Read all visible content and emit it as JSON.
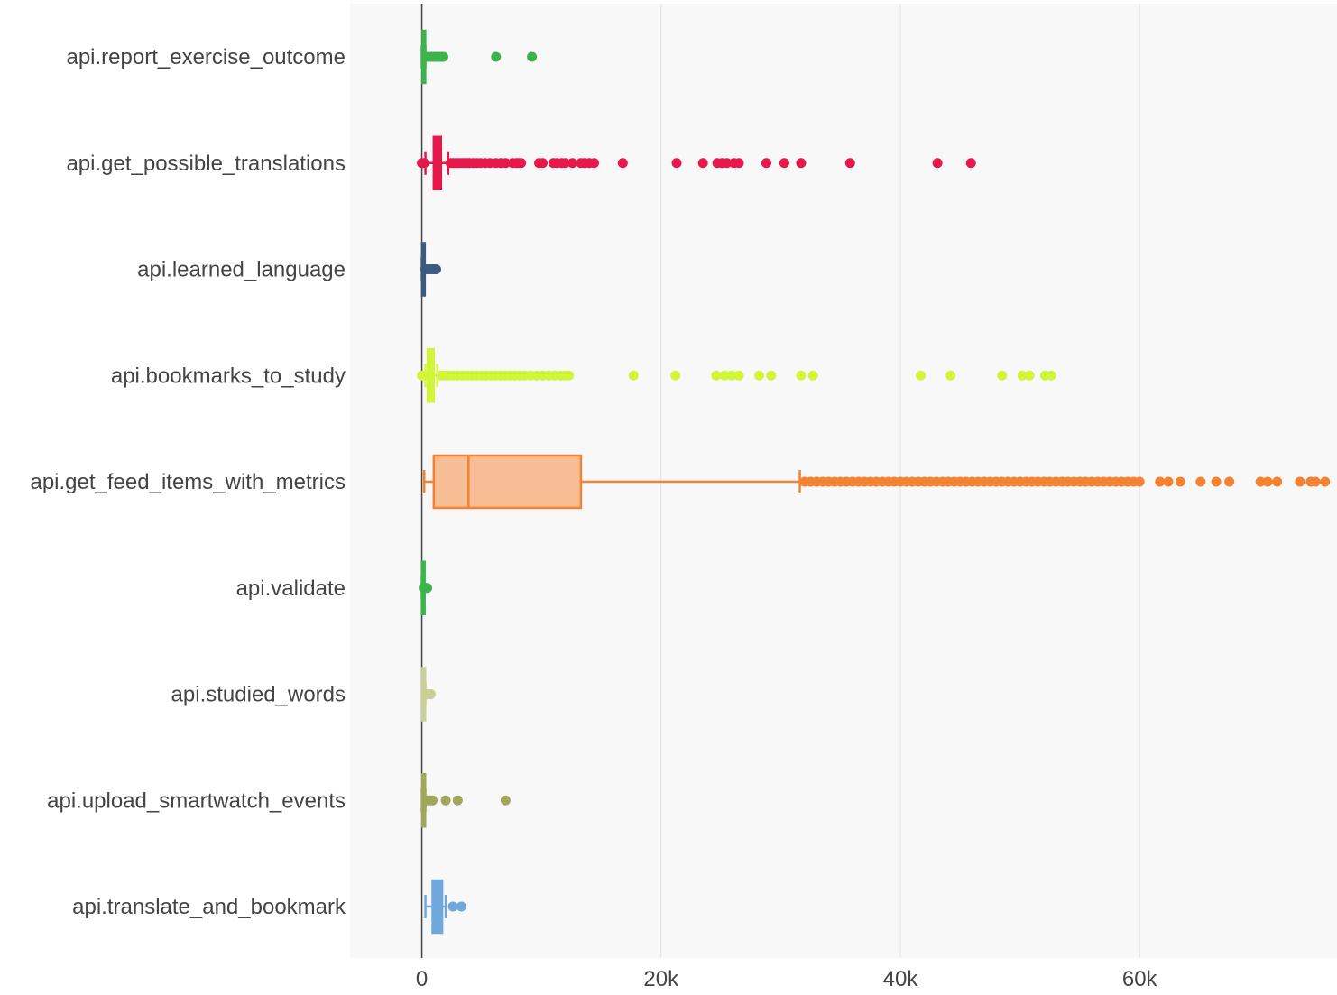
{
  "chart_data": {
    "type": "box",
    "orientation": "horizontal",
    "title": "",
    "xlabel": "",
    "ylabel": "",
    "xlim": [
      -6000,
      76500
    ],
    "x_ticks": [
      0,
      20000,
      40000,
      60000
    ],
    "x_tick_labels": [
      "0",
      "20k",
      "40k",
      "60k"
    ],
    "grid": true,
    "legend": "none",
    "plot_background": "#f8f8f8",
    "zero_line": true,
    "categories": [
      "api.report_exercise_outcome",
      "api.get_possible_translations",
      "api.learned_language",
      "api.bookmarks_to_study",
      "api.get_feed_items_with_metrics",
      "api.validate",
      "api.studied_words",
      "api.upload_smartwatch_events",
      "api.translate_and_bookmark"
    ],
    "series": [
      {
        "label": "api.report_exercise_outcome",
        "color": "#3cb44b",
        "min": 0,
        "q1": 60,
        "median": 120,
        "q3": 200,
        "max": 300,
        "outliers": [
          400,
          600,
          800,
          1000,
          1200,
          1400,
          1600,
          1800,
          6200,
          9200
        ]
      },
      {
        "label": "api.get_possible_translations",
        "color": "#e6194b",
        "min": 300,
        "q1": 1000,
        "median": 1300,
        "q3": 1600,
        "max": 2200,
        "outliers": [
          0,
          200,
          2400,
          2600,
          2800,
          3000,
          3200,
          3400,
          3600,
          3800,
          4000,
          4300,
          4600,
          4900,
          5300,
          5700,
          6200,
          6600,
          7000,
          7600,
          7900,
          8100,
          8300,
          9800,
          10100,
          11000,
          11300,
          11700,
          12000,
          12600,
          13300,
          13600,
          14000,
          14400,
          16800,
          21300,
          23500,
          24700,
          25100,
          25500,
          26100,
          26500,
          28800,
          30300,
          31700,
          35800,
          43100,
          45900
        ]
      },
      {
        "label": "api.learned_language",
        "color": "#3d5a80",
        "min": 0,
        "q1": 20,
        "median": 50,
        "q3": 100,
        "max": 200,
        "outliers": [
          300,
          500,
          700,
          900,
          1100,
          1200
        ]
      },
      {
        "label": "api.bookmarks_to_study",
        "color": "#d2f53c",
        "min": 300,
        "q1": 500,
        "median": 700,
        "q3": 1000,
        "max": 1300,
        "outliers": [
          0,
          100,
          1600,
          1900,
          2200,
          2600,
          3000,
          3400,
          3800,
          4200,
          4600,
          5000,
          5400,
          5800,
          6200,
          6600,
          7000,
          7400,
          7800,
          8200,
          8600,
          9100,
          9600,
          10100,
          10600,
          11100,
          11600,
          12000,
          12300,
          17700,
          21200,
          24600,
          25300,
          25900,
          26500,
          28200,
          29200,
          31700,
          32700,
          41700,
          44200,
          48500,
          50200,
          50800,
          52100,
          52600
        ]
      },
      {
        "label": "api.get_feed_items_with_metrics",
        "color": "#f58231",
        "fillcolor": "rgba(245,130,49,0.5)",
        "min": 200,
        "q1": 1000,
        "median": 3900,
        "q3": 13300,
        "max": 31600,
        "outliers": [
          32000,
          32500,
          33000,
          33500,
          34000,
          34500,
          35000,
          35500,
          36000,
          36500,
          37000,
          37500,
          38000,
          38500,
          39000,
          39500,
          40000,
          40500,
          41000,
          41500,
          42000,
          42500,
          43000,
          43500,
          44000,
          44500,
          45000,
          45500,
          46000,
          46500,
          47000,
          47500,
          48000,
          48500,
          49000,
          49500,
          50000,
          50500,
          51000,
          51500,
          52000,
          52500,
          53000,
          53500,
          54000,
          54500,
          55000,
          55500,
          56000,
          56500,
          57000,
          57500,
          58000,
          58500,
          59000,
          59500,
          60000,
          61700,
          62400,
          63400,
          65100,
          66400,
          67500,
          70100,
          70700,
          71500,
          73400,
          74300,
          74700,
          75500
        ]
      },
      {
        "label": "api.validate",
        "color": "#3cb44b",
        "min": 0,
        "q1": 10,
        "median": 20,
        "q3": 40,
        "max": 80,
        "outliers": [
          150,
          250,
          350,
          450
        ]
      },
      {
        "label": "api.studied_words",
        "color": "#c8cf97",
        "min": 0,
        "q1": 50,
        "median": 100,
        "q3": 200,
        "max": 300,
        "outliers": [
          450,
          600,
          750
        ]
      },
      {
        "label": "api.upload_smartwatch_events",
        "color": "#a0a65a",
        "min": 0,
        "q1": 50,
        "median": 100,
        "q3": 200,
        "max": 300,
        "outliers": [
          450,
          700,
          900,
          2000,
          3000,
          7000
        ]
      },
      {
        "label": "api.translate_and_bookmark",
        "color": "#6fa8dc",
        "min": 300,
        "q1": 900,
        "median": 1300,
        "q3": 1700,
        "max": 2000,
        "outliers": [
          2600,
          3300
        ]
      }
    ]
  }
}
